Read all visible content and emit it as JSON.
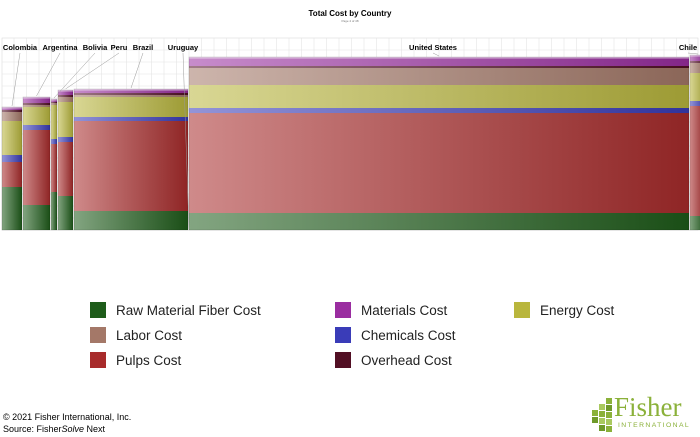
{
  "chart_data": {
    "type": "marimekko-stacked-bar",
    "title": "Total Cost by Country",
    "subtitle": "Page 4 of 48",
    "components": [
      {
        "key": "fiber",
        "name": "Raw Material Fiber Cost",
        "color": "#1e5c1a"
      },
      {
        "key": "pulps",
        "name": "Pulps Cost",
        "color": "#a82b2b"
      },
      {
        "key": "chem",
        "name": "Chemicals Cost",
        "color": "#3a3cb8"
      },
      {
        "key": "energy",
        "name": "Energy Cost",
        "color": "#b9b63d"
      },
      {
        "key": "labor",
        "name": "Labor Cost",
        "color": "#a47868"
      },
      {
        "key": "overhead",
        "name": "Overhead Cost",
        "color": "#520f24"
      },
      {
        "key": "materials",
        "name": "Materials Cost",
        "color": "#9a2da0"
      }
    ],
    "countries": [
      {
        "name": "Colombia",
        "width": 20,
        "values": {
          "fiber": 43,
          "pulps": 25,
          "chem": 7,
          "energy": 34,
          "labor": 9,
          "overhead": 2,
          "materials": 3
        }
      },
      {
        "name": "Argentina",
        "width": 27,
        "values": {
          "fiber": 25,
          "pulps": 75,
          "chem": 5,
          "energy": 18,
          "labor": 2,
          "overhead": 2,
          "materials": 6
        }
      },
      {
        "name": "Bolivia",
        "width": 6,
        "values": {
          "fiber": 38,
          "pulps": 48,
          "chem": 5,
          "energy": 34,
          "labor": 2,
          "overhead": 1,
          "materials": 3
        }
      },
      {
        "name": "Peru",
        "width": 15,
        "values": {
          "fiber": 34,
          "pulps": 54,
          "chem": 5,
          "energy": 35,
          "labor": 5,
          "overhead": 2,
          "materials": 5
        }
      },
      {
        "name": "Brazil",
        "width": 114,
        "values": {
          "fiber": 19,
          "pulps": 90,
          "chem": 4,
          "energy": 20,
          "labor": 2,
          "overhead": 2,
          "materials": 4
        }
      },
      {
        "name": "Uruguay",
        "width": 0,
        "values": {
          "fiber": 0,
          "pulps": 0,
          "chem": 0,
          "energy": 0,
          "labor": 0,
          "overhead": 0,
          "materials": 0
        }
      },
      {
        "name": "United States",
        "width": 500,
        "values": {
          "fiber": 17,
          "pulps": 100,
          "chem": 5,
          "energy": 23,
          "labor": 17,
          "overhead": 2,
          "materials": 9
        }
      },
      {
        "name": "Chile",
        "width": 16,
        "values": {
          "fiber": 14,
          "pulps": 110,
          "chem": 5,
          "energy": 28,
          "labor": 10,
          "overhead": 2,
          "materials": 6
        }
      }
    ],
    "grid": true,
    "legend_position": "bottom"
  },
  "footer": {
    "copyright": "© 2021 Fisher International, Inc.",
    "source_prefix": "Source: Fisher",
    "source_product": "Solve",
    "source_suffix": " Next"
  },
  "logo": {
    "name": "Fisher",
    "subtitle": "INTERNATIONAL",
    "color": "#8bb13a"
  }
}
